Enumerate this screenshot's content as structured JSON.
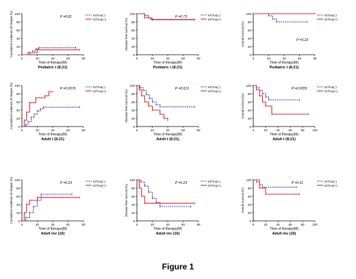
{
  "figure_title": "Figure 1",
  "colors": {
    "kitmu_neg": "#2b2bb3",
    "kitmu_pos": "#e02020",
    "axis": "#000000"
  },
  "chart_data": [
    {
      "type": "line",
      "ylabel": "Cumulative incidence of relapse (%)",
      "xlabel": "Time of therapy(M)",
      "subtitle": "Pediatric t (8;21)",
      "pvalue": "P =0.81",
      "xlim": [
        0,
        80
      ],
      "xticks": [
        0,
        20,
        40,
        60,
        80
      ],
      "ylim": [
        0,
        100
      ],
      "yticks": [
        0,
        20,
        40,
        60,
        80,
        100
      ],
      "legend": [
        "KITmu(-)",
        "KITmu(+)"
      ],
      "legend_position": "top-right",
      "series": [
        {
          "name": "KITmu(-)",
          "style": "dashed",
          "x": [
            0,
            8,
            14,
            18,
            22,
            70
          ],
          "y": [
            0,
            5,
            9,
            14,
            17,
            17
          ]
        },
        {
          "name": "KITmu(+)",
          "style": "solid",
          "x": [
            0,
            10,
            20,
            75
          ],
          "y": [
            0,
            5,
            12,
            12
          ]
        }
      ]
    },
    {
      "type": "line",
      "ylabel": "Disease free survival (%)",
      "xlabel": "Time of therapy(M)",
      "subtitle": "Pediatric t (8;21)",
      "pvalue": "P =0.73",
      "xlim": [
        0,
        80
      ],
      "xticks": [
        0,
        20,
        40,
        60,
        80
      ],
      "ylim": [
        0,
        100
      ],
      "yticks": [
        0,
        20,
        40,
        60,
        80,
        100
      ],
      "legend": [
        "KITmu(-)",
        "KITmu(+)"
      ],
      "legend_position": "top-right",
      "series": [
        {
          "name": "KITmu(-)",
          "style": "dashed",
          "x": [
            0,
            10,
            15,
            20,
            75
          ],
          "y": [
            100,
            96,
            90,
            85,
            85
          ]
        },
        {
          "name": "KITmu(+)",
          "style": "solid",
          "x": [
            0,
            10,
            18,
            75
          ],
          "y": [
            100,
            90,
            86,
            86
          ]
        }
      ]
    },
    {
      "type": "line",
      "ylabel": "Overall survival (%)",
      "xlabel": "Time of therapy(M)",
      "subtitle": "Pediatric t (8;21)",
      "pvalue": "P =0.22",
      "xlim": [
        0,
        80
      ],
      "xticks": [
        0,
        20,
        40,
        60,
        80
      ],
      "ylim": [
        0,
        100
      ],
      "yticks": [
        0,
        20,
        40,
        60,
        80,
        100
      ],
      "legend": [
        "KITmu(-)",
        "KITmu(+)"
      ],
      "legend_position": "top-right",
      "series": [
        {
          "name": "KITmu(-)",
          "style": "dashed",
          "x": [
            0,
            20,
            25,
            30,
            70
          ],
          "y": [
            100,
            95,
            87,
            80,
            80
          ]
        },
        {
          "name": "KITmu(+)",
          "style": "solid",
          "x": [
            0,
            80
          ],
          "y": [
            100,
            100
          ]
        }
      ]
    },
    {
      "type": "line",
      "ylabel": "Cumulative incidence of relapse (%)",
      "xlabel": "Time of therapy(M)",
      "subtitle": "Adult t (8;21)",
      "pvalue": "P =0.0076",
      "xlim": [
        0,
        80
      ],
      "xticks": [
        0,
        20,
        40,
        60,
        80
      ],
      "ylim": [
        0,
        100
      ],
      "yticks": [
        0,
        20,
        40,
        60,
        80,
        100
      ],
      "legend": [
        "KITmu(-)",
        "KITmu(+)"
      ],
      "legend_position": "top-right",
      "series": [
        {
          "name": "KITmu(-)",
          "style": "dashed",
          "x": [
            0,
            5,
            8,
            12,
            16,
            20,
            24,
            28,
            75
          ],
          "y": [
            0,
            5,
            12,
            22,
            30,
            38,
            43,
            47,
            47
          ]
        },
        {
          "name": "KITmu(+)",
          "style": "solid",
          "x": [
            0,
            3,
            6,
            10,
            18,
            30,
            35,
            40
          ],
          "y": [
            0,
            15,
            35,
            58,
            70,
            75,
            85,
            85
          ]
        }
      ]
    },
    {
      "type": "line",
      "ylabel": "Disease free survival (%)",
      "xlabel": "Time of therapy(M)",
      "subtitle": "Adult t (8;21)",
      "pvalue": "P =0.013",
      "xlim": [
        0,
        80
      ],
      "xticks": [
        0,
        20,
        40,
        60,
        80
      ],
      "ylim": [
        0,
        100
      ],
      "yticks": [
        0,
        20,
        40,
        60,
        80,
        100
      ],
      "legend": [
        "KITmu(-)",
        "KITmu(+)"
      ],
      "legend_position": "top-right",
      "series": [
        {
          "name": "KITmu(-)",
          "style": "dashed",
          "x": [
            0,
            4,
            8,
            12,
            16,
            20,
            25,
            30,
            75
          ],
          "y": [
            100,
            95,
            88,
            78,
            68,
            60,
            53,
            48,
            48
          ]
        },
        {
          "name": "KITmu(+)",
          "style": "solid",
          "x": [
            0,
            3,
            6,
            10,
            15,
            20,
            30,
            35,
            40
          ],
          "y": [
            100,
            90,
            75,
            60,
            50,
            40,
            30,
            20,
            15
          ]
        }
      ]
    },
    {
      "type": "line",
      "ylabel": "Overall survival (%)",
      "xlabel": "Time of therapy(M)",
      "subtitle": "Adult t (8;21)",
      "pvalue": "P =0.0055",
      "xlim": [
        0,
        100
      ],
      "xticks": [
        0,
        20,
        40,
        60,
        80,
        100
      ],
      "ylim": [
        0,
        100
      ],
      "yticks": [
        0,
        20,
        40,
        60,
        80,
        100
      ],
      "legend": [
        "KITmu(-)",
        "KITmu(+)"
      ],
      "legend_position": "top-right",
      "series": [
        {
          "name": "KITmu(-)",
          "style": "dashed",
          "x": [
            0,
            5,
            10,
            15,
            20,
            25,
            75
          ],
          "y": [
            100,
            95,
            88,
            80,
            72,
            65,
            65
          ]
        },
        {
          "name": "KITmu(+)",
          "style": "solid",
          "x": [
            0,
            5,
            10,
            15,
            20,
            30,
            90
          ],
          "y": [
            100,
            90,
            75,
            60,
            50,
            30,
            30
          ]
        }
      ]
    },
    {
      "type": "line",
      "ylabel": "Cumulative incidence of relapse (%)",
      "xlabel": "Time of therapy(M)",
      "subtitle": "Adult inv (16)",
      "pvalue": "P =0.23",
      "xlim": [
        0,
        80
      ],
      "xticks": [
        0,
        20,
        40,
        60,
        80
      ],
      "ylim": [
        0,
        100
      ],
      "yticks": [
        0,
        20,
        40,
        60,
        80,
        100
      ],
      "legend": [
        "KITmu(-)",
        "KITmu(+)"
      ],
      "legend_position": "top-right",
      "series": [
        {
          "name": "KITmu(-)",
          "style": "dashed",
          "x": [
            0,
            5,
            10,
            15,
            20,
            25,
            65
          ],
          "y": [
            0,
            8,
            20,
            35,
            50,
            65,
            65
          ]
        },
        {
          "name": "KITmu(+)",
          "style": "solid",
          "x": [
            0,
            3,
            6,
            10,
            20,
            75
          ],
          "y": [
            0,
            20,
            40,
            50,
            57,
            57
          ]
        }
      ]
    },
    {
      "type": "line",
      "ylabel": "Disease free survival (%)",
      "xlabel": "Time of therapy(M)",
      "subtitle": "Adult inv (16)",
      "pvalue": "P =0.23",
      "xlim": [
        0,
        80
      ],
      "xticks": [
        0,
        20,
        40,
        60,
        80
      ],
      "ylim": [
        0,
        100
      ],
      "yticks": [
        0,
        20,
        40,
        60,
        80,
        100
      ],
      "legend": [
        "KITmu(-)",
        "KITmu(+)"
      ],
      "legend_position": "top-right",
      "series": [
        {
          "name": "KITmu(-)",
          "style": "dashed",
          "x": [
            0,
            5,
            10,
            15,
            20,
            25,
            30,
            70
          ],
          "y": [
            100,
            95,
            85,
            70,
            55,
            45,
            35,
            35
          ]
        },
        {
          "name": "KITmu(+)",
          "style": "solid",
          "x": [
            0,
            3,
            6,
            10,
            75
          ],
          "y": [
            100,
            80,
            60,
            43,
            43
          ]
        }
      ]
    },
    {
      "type": "line",
      "ylabel": "Overall survival (%)",
      "xlabel": "Time of therapy(M)",
      "subtitle": "Adult inv (16)",
      "pvalue": "P =0.51",
      "xlim": [
        0,
        100
      ],
      "xticks": [
        0,
        20,
        40,
        60,
        80,
        100
      ],
      "ylim": [
        0,
        100
      ],
      "yticks": [
        0,
        20,
        40,
        60,
        80,
        100
      ],
      "legend": [
        "KITmu(-)",
        "KITmu(+)"
      ],
      "legend_position": "top-right",
      "series": [
        {
          "name": "KITmu(-)",
          "style": "dashed",
          "x": [
            0,
            5,
            10,
            15,
            70
          ],
          "y": [
            100,
            95,
            88,
            82,
            82
          ]
        },
        {
          "name": "KITmu(+)",
          "style": "solid",
          "x": [
            0,
            10,
            20,
            75
          ],
          "y": [
            100,
            80,
            65,
            65
          ]
        }
      ]
    }
  ]
}
